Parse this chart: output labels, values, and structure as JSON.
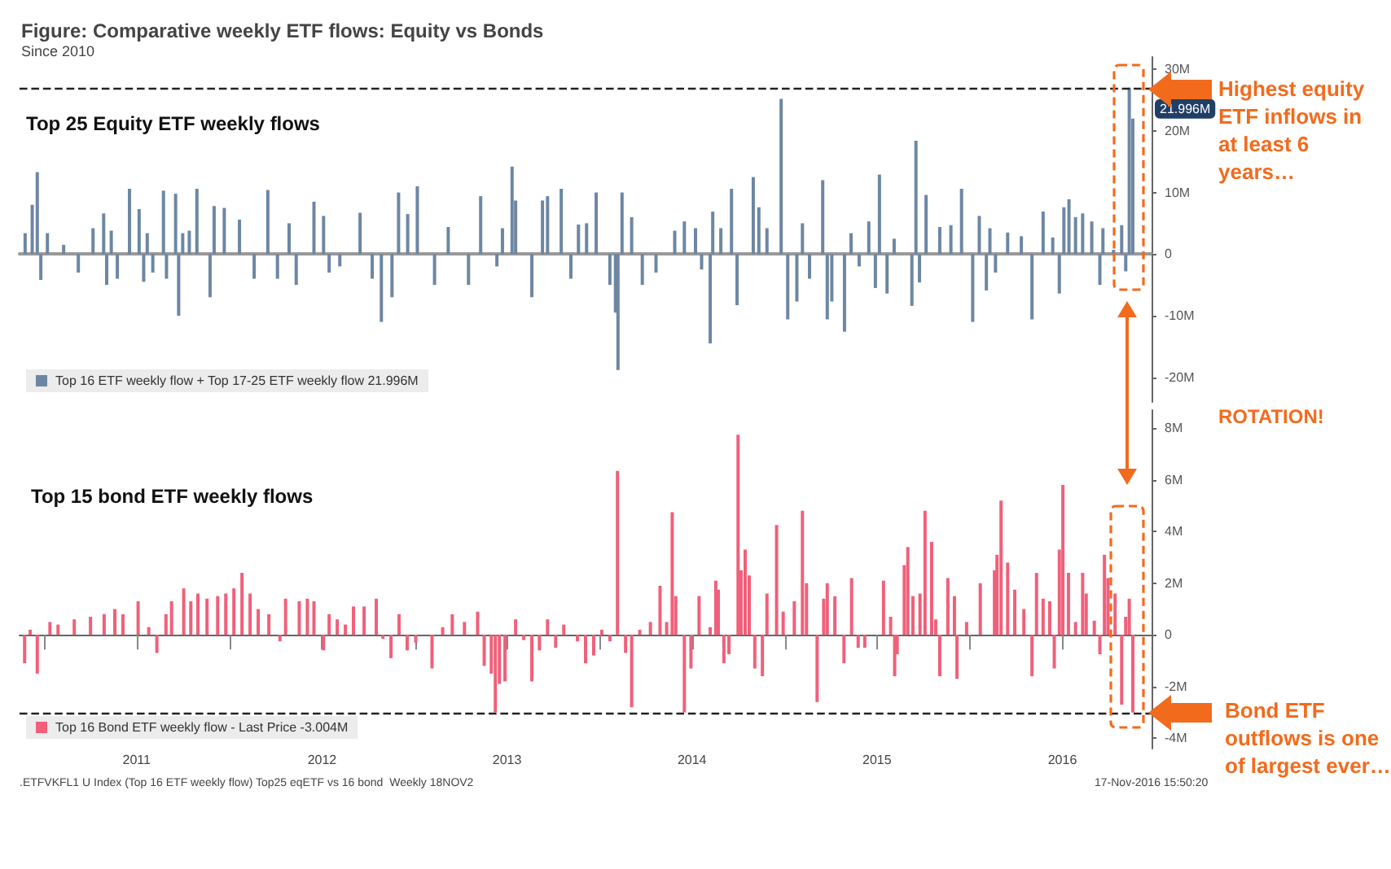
{
  "chart_data": [
    {
      "type": "bar",
      "title": "Figure: Comparative weekly ETF flows: Equity vs Bonds",
      "subtitle": "Since 2010",
      "x": [
        "2010-11-23",
        "2010-12-07",
        "2010-12-17",
        "2010-12-24",
        "2011-01-06",
        "2011-02-07",
        "2011-03-08",
        "2011-04-06",
        "2011-04-27",
        "2011-05-03",
        "2011-05-12",
        "2011-05-24",
        "2011-06-17",
        "2011-07-06",
        "2011-07-15",
        "2011-07-22",
        "2011-08-02",
        "2011-08-23",
        "2011-08-29",
        "2011-09-16",
        "2011-09-22",
        "2011-09-30",
        "2011-10-13",
        "2011-10-28",
        "2011-11-23",
        "2011-12-01",
        "2011-12-21",
        "2012-01-20",
        "2012-02-18",
        "2012-03-16",
        "2012-04-04",
        "2012-04-27",
        "2012-05-11",
        "2012-06-15",
        "2012-07-04",
        "2012-07-15",
        "2012-08-05",
        "2012-09-14",
        "2012-10-08",
        "2012-10-26",
        "2012-11-16",
        "2012-11-29",
        "2012-12-17",
        "2013-01-05",
        "2013-02-08",
        "2013-03-07",
        "2013-04-16",
        "2013-05-10",
        "2013-06-11",
        "2013-06-22",
        "2013-07-11",
        "2013-07-18",
        "2013-08-19",
        "2013-09-09",
        "2013-09-19",
        "2013-10-16",
        "2013-11-04",
        "2013-11-19",
        "2013-12-05",
        "2013-12-24",
        "2014-01-20",
        "2014-01-31",
        "2014-02-05",
        "2014-02-13",
        "2014-03-04",
        "2014-03-25",
        "2014-04-21",
        "2014-05-28",
        "2014-06-16",
        "2014-07-08",
        "2014-07-20",
        "2014-08-06",
        "2014-08-11",
        "2014-08-27",
        "2014-09-17",
        "2014-09-28",
        "2014-10-30",
        "2014-11-10",
        "2014-11-26",
        "2014-12-24",
        "2015-01-06",
        "2015-01-24",
        "2015-02-04",
        "2015-02-18",
        "2015-03-16",
        "2015-03-25",
        "2015-04-03",
        "2015-04-28",
        "2015-05-11",
        "2015-05-27",
        "2015-06-15",
        "2015-06-28",
        "2015-07-06",
        "2015-07-21",
        "2015-08-04",
        "2015-09-08",
        "2015-09-16",
        "2015-09-23",
        "2015-10-06",
        "2015-11-02",
        "2015-11-24",
        "2015-12-15",
        "2016-01-06",
        "2016-01-19",
        "2016-02-02",
        "2016-02-09",
        "2016-02-20",
        "2016-03-15",
        "2016-04-11",
        "2016-05-02",
        "2016-05-24",
        "2016-06-12",
        "2016-06-25",
        "2016-07-04",
        "2016-07-14",
        "2016-07-27",
        "2016-08-10",
        "2016-08-28",
        "2016-09-13",
        "2016-09-19",
        "2016-10-10",
        "2016-10-26",
        "2016-11-03",
        "2016-11-10",
        "2016-11-17"
      ],
      "series": [
        {
          "name": "Top 16 ETF weekly flow + Top 17-25 ETF weekly flow 21.996M",
          "color": "#6d87a3",
          "values": [
            3.4,
            8,
            13.3,
            -4.2,
            3.4,
            1.5,
            -3,
            4.2,
            6.6,
            -5,
            3.8,
            -4,
            10.6,
            7.3,
            -4.5,
            3.4,
            -3,
            10.3,
            -4,
            9.8,
            -10,
            3.4,
            3.8,
            10.6,
            -7,
            7.8,
            7.5,
            5.6,
            -4,
            10.4,
            -4,
            5,
            -5,
            8.5,
            6.2,
            -3,
            -2,
            6.7,
            -4,
            -11,
            -7,
            10,
            6.5,
            11,
            -5,
            4.4,
            -5,
            9.4,
            -2,
            4.2,
            14.2,
            8.7,
            -7,
            8.7,
            9.4,
            10.6,
            -4,
            4.8,
            5,
            10,
            -5,
            -9.5,
            -18.8,
            10,
            6,
            -5,
            -3,
            3.8,
            5.3,
            4.2,
            -2.5,
            -14.5,
            6.9,
            4.2,
            10.6,
            -8.3,
            12.5,
            7.6,
            4.2,
            25.2,
            -10.6,
            -7.7,
            5,
            -4,
            12,
            -10.6,
            -7.7,
            -12.6,
            3.4,
            -2,
            5.3,
            -5.5,
            12.9,
            -6.4,
            2.5,
            -8.4,
            18.4,
            -4.6,
            9.6,
            4.4,
            4.7,
            10.6,
            -11,
            6.2,
            -5.9,
            4.2,
            -3,
            3.5,
            2.9,
            -10.6,
            6.9,
            2.7,
            -6.4,
            7.6,
            8.9,
            6,
            6.6,
            5.3,
            -5,
            4.2,
            0.7,
            4.7,
            -2.8,
            27,
            21.996
          ]
        }
      ],
      "xlim": [
        "2010-11-12",
        "2016-12-24"
      ],
      "ylim": [
        -24,
        32
      ],
      "yticks": [
        {
          "value": -20,
          "label": "-20M"
        },
        {
          "value": -10,
          "label": "-10M"
        },
        0,
        {
          "value": 10,
          "label": "10M"
        },
        {
          "value": 20,
          "label": "20M"
        },
        {
          "value": 30,
          "label": "30M"
        }
      ],
      "tick_labels": "y",
      "legend": "bottom left",
      "ref_lines": [
        {
          "axis": "y",
          "value": 27,
          "color": "#222222",
          "line_style": "dashed"
        }
      ],
      "annotations": [
        "Top 25 Equity ETF weekly flows",
        "Highest equity ETF inflows in at least 6 years…",
        {
          "text": "21.996M",
          "x": "2016-11-17",
          "y": 21.996
        }
      ]
    },
    {
      "type": "bar",
      "title": "Top 15 bond ETF weekly flows",
      "x": [
        "2010-11-22",
        "2010-12-03",
        "2010-12-17",
        "2011-01-11",
        "2011-01-27",
        "2011-02-28",
        "2011-04-01",
        "2011-04-28",
        "2011-05-19",
        "2011-06-04",
        "2011-07-04",
        "2011-07-25",
        "2011-08-10",
        "2011-08-28",
        "2011-09-08",
        "2011-10-02",
        "2011-10-16",
        "2011-10-30",
        "2011-11-17",
        "2011-12-08",
        "2011-12-24",
        "2012-01-09",
        "2012-01-25",
        "2012-02-10",
        "2012-02-26",
        "2012-03-18",
        "2012-04-09",
        "2012-04-20",
        "2012-05-17",
        "2012-06-02",
        "2012-06-15",
        "2012-07-04",
        "2012-07-15",
        "2012-07-31",
        "2012-08-16",
        "2012-09-01",
        "2012-09-22",
        "2012-10-16",
        "2012-10-29",
        "2012-11-14",
        "2012-11-30",
        "2012-12-16",
        "2013-01-02",
        "2013-02-03",
        "2013-02-24",
        "2013-03-15",
        "2013-04-08",
        "2013-05-04",
        "2013-05-17",
        "2013-05-31",
        "2013-06-08",
        "2013-06-16",
        "2013-06-27",
        "2013-07-18",
        "2013-08-03",
        "2013-08-19",
        "2013-09-03",
        "2013-09-19",
        "2013-10-05",
        "2013-10-21",
        "2013-11-17",
        "2013-12-03",
        "2013-12-19",
        "2014-01-04",
        "2014-01-20",
        "2014-02-04",
        "2014-02-20",
        "2014-03-04",
        "2014-03-20",
        "2014-04-10",
        "2014-04-29",
        "2014-05-12",
        "2014-05-23",
        "2014-05-30",
        "2014-06-16",
        "2014-06-29",
        "2014-07-15",
        "2014-08-06",
        "2014-08-17",
        "2014-08-22",
        "2014-09-02",
        "2014-09-12",
        "2014-09-30",
        "2014-10-06",
        "2014-10-14",
        "2014-10-22",
        "2014-11-02",
        "2014-11-17",
        "2014-11-26",
        "2014-12-15",
        "2014-12-28",
        "2015-01-19",
        "2015-02-04",
        "2015-02-12",
        "2015-03-05",
        "2015-03-18",
        "2015-03-25",
        "2015-04-09",
        "2015-04-27",
        "2015-05-12",
        "2015-05-25",
        "2015-06-07",
        "2015-07-14",
        "2015-07-28",
        "2015-08-05",
        "2015-08-10",
        "2015-08-24",
        "2015-08-31",
        "2015-09-10",
        "2015-09-24",
        "2015-10-04",
        "2015-10-17",
        "2015-10-25",
        "2015-11-02",
        "2015-11-18",
        "2015-12-01",
        "2015-12-06",
        "2015-12-25",
        "2016-01-21",
        "2016-02-18",
        "2016-02-23",
        "2016-03-02",
        "2016-03-15",
        "2016-03-29",
        "2016-04-16",
        "2016-05-02",
        "2016-05-11",
        "2016-05-24",
        "2016-06-06",
        "2016-06-15",
        "2016-06-25",
        "2016-07-02",
        "2016-07-13",
        "2016-07-27",
        "2016-08-10",
        "2016-08-17",
        "2016-09-02",
        "2016-09-13",
        "2016-09-22",
        "2016-09-29",
        "2016-10-13",
        "2016-10-26",
        "2016-11-03",
        "2016-11-10",
        "2016-11-17"
      ],
      "series": [
        {
          "name": "Top 16 Bond ETF weekly flow - Last Price -3.004M",
          "color": "#f0607a",
          "values": [
            -1.1,
            0.2,
            -1.5,
            0.5,
            0.4,
            0.6,
            0.7,
            0.8,
            1,
            0.8,
            1.3,
            0.3,
            -0.7,
            0.8,
            1.3,
            1.8,
            1.3,
            1.6,
            1.4,
            1.5,
            1.6,
            1.8,
            2.4,
            1.6,
            1,
            0.8,
            -0.25,
            1.4,
            1.3,
            1.4,
            1.3,
            -0.6,
            0.8,
            0.6,
            0.4,
            1.1,
            1.1,
            1.4,
            -0.15,
            -0.9,
            0.8,
            -0.6,
            -0.3,
            -1.3,
            0.3,
            0.8,
            0.5,
            0.9,
            -1.2,
            -1.5,
            -3,
            -1.9,
            -1.8,
            0.6,
            -0.2,
            -1.8,
            -0.6,
            0.6,
            -0.5,
            0.4,
            -0.25,
            -1.1,
            -0.8,
            0.2,
            -0.25,
            6.35,
            -0.7,
            -2.8,
            0.2,
            0.5,
            1.9,
            0.5,
            4.75,
            1.5,
            -3,
            -1.3,
            1.5,
            0.3,
            2.1,
            1.75,
            -1.1,
            -0.75,
            7.75,
            2.5,
            3.3,
            2.3,
            -1.3,
            -1.6,
            1.6,
            4.25,
            0.9,
            1.3,
            4.8,
            2,
            -2.6,
            1.4,
            2,
            1.5,
            -1.1,
            2.2,
            -0.5,
            -0.5,
            2.1,
            0.7,
            -1.6,
            -0.75,
            2.7,
            3.4,
            1.5,
            1.6,
            4.8,
            3.6,
            0.6,
            -1.6,
            2.2,
            1.5,
            -1.7,
            0.5,
            2,
            2.5,
            3.1,
            5.2,
            2.8,
            1.75,
            1,
            -1.6,
            2.4,
            1.4,
            1.3,
            -1.3,
            3.3,
            5.8,
            2.4,
            0.5,
            2.4,
            1.6,
            0.55,
            -0.75,
            3.1,
            2.2,
            1.6,
            -2.7,
            0.7,
            1.4,
            -3.004
          ]
        }
      ],
      "xlim": [
        "2010-11-12",
        "2016-12-24"
      ],
      "ylim": [
        -4.4,
        8.7
      ],
      "xticks": [
        {
          "value": "2011-01-01",
          "label": null
        },
        {
          "value": "2011-07-01",
          "label": "2011"
        },
        {
          "value": "2012-01-01",
          "label": null
        },
        {
          "value": "2012-07-01",
          "label": "2012"
        },
        {
          "value": "2013-01-01",
          "label": null
        },
        {
          "value": "2013-07-01",
          "label": "2013"
        },
        {
          "value": "2014-01-01",
          "label": null
        },
        {
          "value": "2014-07-01",
          "label": "2014"
        },
        {
          "value": "2015-01-01",
          "label": null
        },
        {
          "value": "2015-07-01",
          "label": "2015"
        },
        {
          "value": "2016-01-01",
          "label": null
        },
        {
          "value": "2016-07-01",
          "label": "2016"
        }
      ],
      "yticks": [
        {
          "value": -4,
          "label": "-4M"
        },
        {
          "value": -2,
          "label": "-2M"
        },
        0,
        {
          "value": 2,
          "label": "2M"
        },
        {
          "value": 4,
          "label": "4M"
        },
        {
          "value": 6,
          "label": "6M"
        },
        {
          "value": 8,
          "label": "8M"
        }
      ],
      "legend": "bottom left",
      "ref_lines": [
        {
          "axis": "y",
          "value": -3.004,
          "color": "#222222",
          "line_style": "dashed"
        }
      ],
      "annotations": [
        "ROTATION!",
        "Bond ETF outflows is one of largest ever…",
        ".ETFVKFL1 U Index (Top 16 ETF weekly flow) Top25 eqETF vs 16 bond  Weekly 18NOV2",
        "17-Nov-2016 15:50:20"
      ]
    }
  ]
}
